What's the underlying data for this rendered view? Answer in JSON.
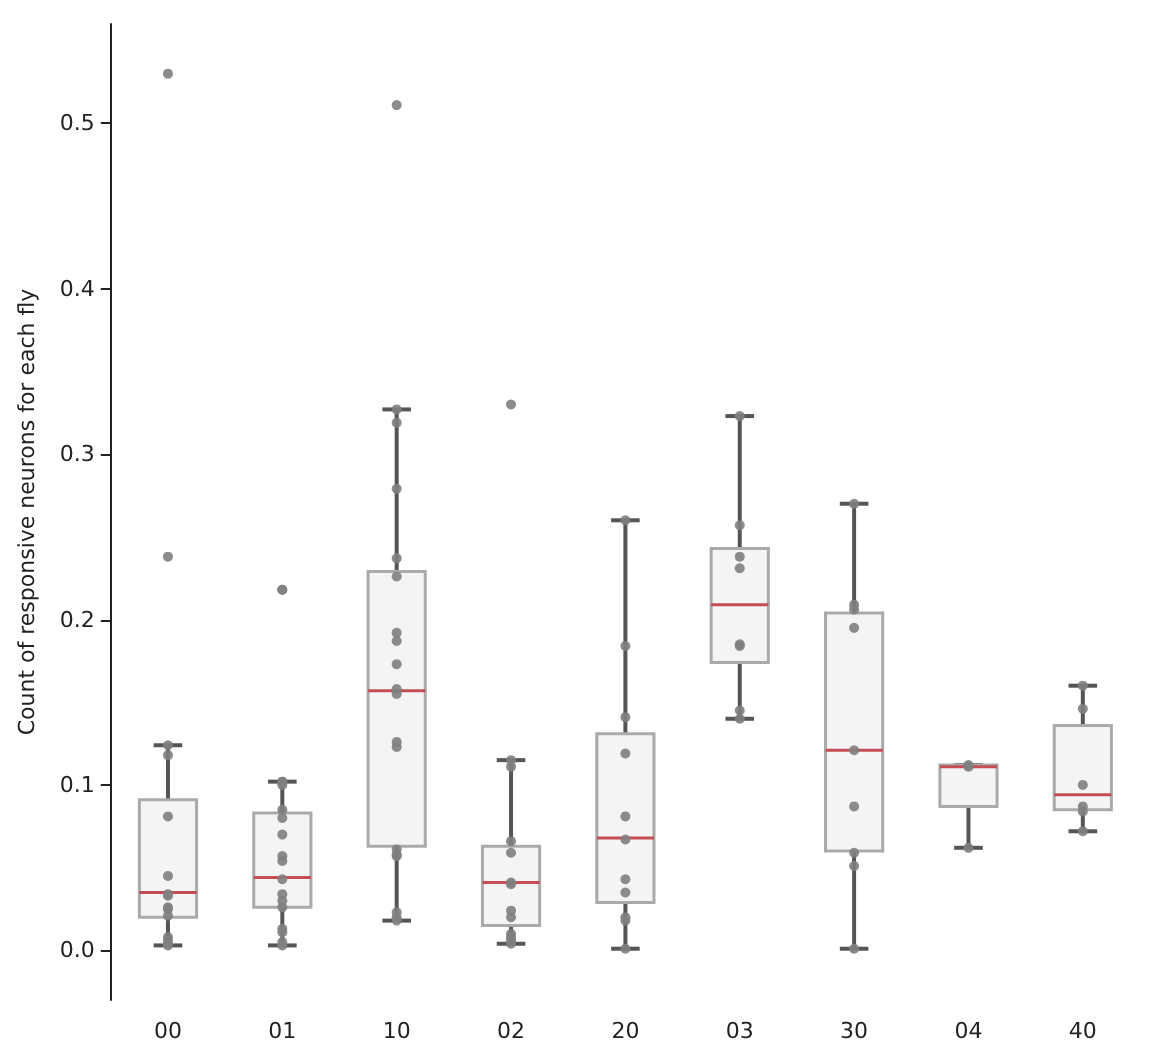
{
  "chart_data": {
    "type": "box",
    "ylabel": "Count of responsive neurons for each fly",
    "categories": [
      "00",
      "01",
      "10",
      "02",
      "20",
      "03",
      "30",
      "04",
      "40"
    ],
    "ylim": [
      -0.03,
      0.56
    ],
    "yticks": [
      {
        "value": 0,
        "label": "0.0"
      },
      {
        "value": 0.1,
        "label": "0.1"
      },
      {
        "value": 0.2,
        "label": "0.2"
      },
      {
        "value": 0.3,
        "label": "0.3"
      },
      {
        "value": 0.4,
        "label": "0.4"
      },
      {
        "value": 0.5,
        "label": "0.5"
      }
    ],
    "grid": false,
    "series": [
      {
        "type": "box",
        "color": "#aaaaaa",
        "boxes": [
          {
            "low": 0.003,
            "q1": 0.02,
            "median": 0.035,
            "q3": 0.091,
            "high": 0.124
          },
          {
            "low": 0.003,
            "q1": 0.026,
            "median": 0.044,
            "q3": 0.083,
            "high": 0.102
          },
          {
            "low": 0.018,
            "q1": 0.063,
            "median": 0.157,
            "q3": 0.229,
            "high": 0.327
          },
          {
            "low": 0.004,
            "q1": 0.015,
            "median": 0.041,
            "q3": 0.063,
            "high": 0.115
          },
          {
            "low": 0.001,
            "q1": 0.029,
            "median": 0.068,
            "q3": 0.131,
            "high": 0.26
          },
          {
            "low": 0.14,
            "q1": 0.174,
            "median": 0.209,
            "q3": 0.243,
            "high": 0.323
          },
          {
            "low": 0.001,
            "q1": 0.06,
            "median": 0.121,
            "q3": 0.204,
            "high": 0.27
          },
          {
            "low": 0.062,
            "q1": 0.087,
            "median": 0.111,
            "q3": 0.112,
            "high": 0.112
          },
          {
            "low": 0.072,
            "q1": 0.085,
            "median": 0.094,
            "q3": 0.136,
            "high": 0.16
          }
        ]
      },
      {
        "type": "scatter",
        "color": "#7f7f7f",
        "marker": "circle",
        "x": [
          "00",
          "00",
          "00",
          "00",
          "00",
          "00",
          "00",
          "00",
          "00",
          "00",
          "00",
          "00",
          "00",
          "00",
          "00",
          "01",
          "01",
          "01",
          "01",
          "01",
          "01",
          "01",
          "01",
          "01",
          "01",
          "01",
          "01",
          "01",
          "01",
          "01",
          "01",
          "01",
          "01",
          "10",
          "10",
          "10",
          "10",
          "10",
          "10",
          "10",
          "10",
          "10",
          "10",
          "10",
          "10",
          "10",
          "10",
          "10",
          "10",
          "10",
          "10",
          "10",
          "02",
          "02",
          "02",
          "02",
          "02",
          "02",
          "02",
          "02",
          "02",
          "02",
          "02",
          "02",
          "02",
          "20",
          "20",
          "20",
          "20",
          "20",
          "20",
          "20",
          "20",
          "20",
          "20",
          "20",
          "03",
          "03",
          "03",
          "03",
          "03",
          "03",
          "03",
          "03",
          "30",
          "30",
          "30",
          "30",
          "30",
          "30",
          "30",
          "30",
          "30",
          "04",
          "04",
          "04",
          "40",
          "40",
          "40",
          "40",
          "40",
          "40"
        ],
        "values": [
          0.53,
          0.238,
          0.124,
          0.118,
          0.081,
          0.045,
          0.034,
          0.033,
          0.026,
          0.025,
          0.021,
          0.008,
          0.006,
          0.004,
          0.003,
          0.218,
          0.218,
          0.102,
          0.102,
          0.1,
          0.085,
          0.08,
          0.07,
          0.057,
          0.054,
          0.043,
          0.034,
          0.03,
          0.026,
          0.013,
          0.011,
          0.005,
          0.003,
          0.511,
          0.327,
          0.319,
          0.279,
          0.237,
          0.226,
          0.192,
          0.187,
          0.173,
          0.158,
          0.155,
          0.126,
          0.123,
          0.061,
          0.058,
          0.057,
          0.023,
          0.02,
          0.018,
          0.33,
          0.115,
          0.111,
          0.066,
          0.059,
          0.041,
          0.04,
          0.024,
          0.02,
          0.01,
          0.008,
          0.006,
          0.004,
          0.26,
          0.184,
          0.141,
          0.119,
          0.081,
          0.067,
          0.043,
          0.035,
          0.02,
          0.018,
          0.001,
          0.323,
          0.257,
          0.238,
          0.231,
          0.185,
          0.184,
          0.145,
          0.14,
          0.27,
          0.209,
          0.206,
          0.195,
          0.121,
          0.087,
          0.059,
          0.051,
          0.001,
          0.112,
          0.111,
          0.062,
          0.16,
          0.146,
          0.1,
          0.087,
          0.084,
          0.072
        ]
      }
    ]
  }
}
